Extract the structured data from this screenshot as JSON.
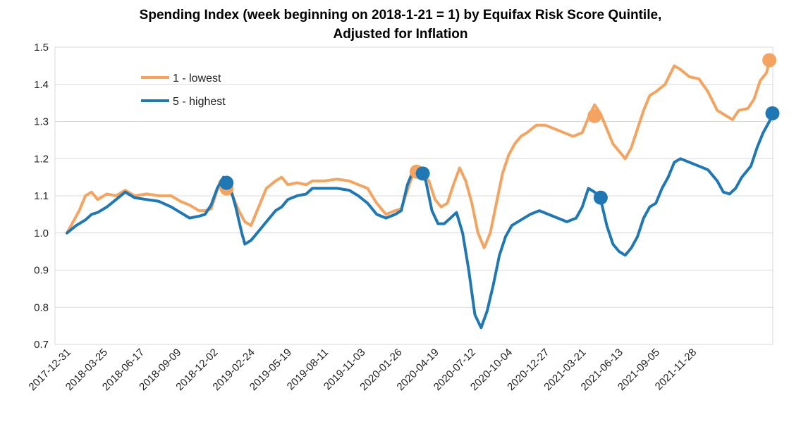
{
  "chart_data": {
    "type": "line",
    "title": "Spending Index (week beginning on 2018-1-21 = 1) by Equifax Risk Score Quintile,",
    "subtitle": "Adjusted for Inflation",
    "xlabel": "",
    "ylabel": "",
    "ylim": [
      0.7,
      1.5
    ],
    "y_ticks": [
      "0.7",
      "0.8",
      "0.9",
      "1.0",
      "1.1",
      "1.2",
      "1.3",
      "1.4",
      "1.5"
    ],
    "grid": true,
    "legend_position": "top-left",
    "x_tick_labels": [
      "2017-12-31",
      "2018-03-25",
      "2018-06-17",
      "2018-09-09",
      "2018-12-02",
      "2019-02-24",
      "2019-05-19",
      "2019-08-11",
      "2019-11-03",
      "2020-01-26",
      "2020-04-19",
      "2020-07-12",
      "2020-10-04",
      "2020-12-27",
      "2021-03-21",
      "2021-06-13",
      "2021-09-05",
      "2021-11-28"
    ],
    "series": [
      {
        "name": "1 - lowest",
        "color": "#f4a460",
        "points": [
          [
            0,
            1.0
          ],
          [
            4,
            1.06
          ],
          [
            6,
            1.1
          ],
          [
            8,
            1.11
          ],
          [
            10,
            1.09
          ],
          [
            13,
            1.105
          ],
          [
            16,
            1.1
          ],
          [
            19,
            1.115
          ],
          [
            22,
            1.1
          ],
          [
            26,
            1.105
          ],
          [
            30,
            1.1
          ],
          [
            34,
            1.1
          ],
          [
            37,
            1.085
          ],
          [
            40,
            1.075
          ],
          [
            43,
            1.06
          ],
          [
            45,
            1.06
          ],
          [
            47,
            1.065
          ],
          [
            50,
            1.14
          ],
          [
            52,
            1.12
          ],
          [
            54,
            1.1
          ],
          [
            56,
            1.06
          ],
          [
            58,
            1.03
          ],
          [
            60,
            1.02
          ],
          [
            62,
            1.06
          ],
          [
            65,
            1.12
          ],
          [
            68,
            1.14
          ],
          [
            70,
            1.15
          ],
          [
            72,
            1.13
          ],
          [
            75,
            1.135
          ],
          [
            78,
            1.13
          ],
          [
            80,
            1.14
          ],
          [
            84,
            1.14
          ],
          [
            88,
            1.145
          ],
          [
            92,
            1.14
          ],
          [
            95,
            1.13
          ],
          [
            98,
            1.12
          ],
          [
            101,
            1.08
          ],
          [
            104,
            1.05
          ],
          [
            107,
            1.06
          ],
          [
            109,
            1.065
          ],
          [
            112,
            1.14
          ],
          [
            114,
            1.18
          ],
          [
            116,
            1.16
          ],
          [
            118,
            1.14
          ],
          [
            120,
            1.09
          ],
          [
            122,
            1.07
          ],
          [
            124,
            1.08
          ],
          [
            126,
            1.13
          ],
          [
            128,
            1.175
          ],
          [
            130,
            1.14
          ],
          [
            132,
            1.08
          ],
          [
            134,
            1.0
          ],
          [
            136,
            0.96
          ],
          [
            138,
            1.0
          ],
          [
            140,
            1.08
          ],
          [
            142,
            1.16
          ],
          [
            144,
            1.21
          ],
          [
            146,
            1.24
          ],
          [
            148,
            1.26
          ],
          [
            150,
            1.27
          ],
          [
            153,
            1.29
          ],
          [
            156,
            1.29
          ],
          [
            159,
            1.28
          ],
          [
            162,
            1.27
          ],
          [
            165,
            1.26
          ],
          [
            168,
            1.27
          ],
          [
            170,
            1.31
          ],
          [
            172,
            1.345
          ],
          [
            174,
            1.32
          ],
          [
            176,
            1.28
          ],
          [
            178,
            1.24
          ],
          [
            180,
            1.22
          ],
          [
            182,
            1.2
          ],
          [
            184,
            1.23
          ],
          [
            186,
            1.28
          ],
          [
            188,
            1.33
          ],
          [
            190,
            1.37
          ],
          [
            192,
            1.38
          ],
          [
            195,
            1.4
          ],
          [
            198,
            1.45
          ],
          [
            200,
            1.44
          ],
          [
            203,
            1.42
          ],
          [
            206,
            1.415
          ],
          [
            209,
            1.38
          ],
          [
            212,
            1.33
          ],
          [
            215,
            1.315
          ],
          [
            217,
            1.305
          ],
          [
            219,
            1.33
          ],
          [
            222,
            1.335
          ],
          [
            224,
            1.36
          ],
          [
            226,
            1.41
          ],
          [
            228,
            1.43
          ],
          [
            229,
            1.46
          ]
        ],
        "markers": [
          [
            52,
            1.12
          ],
          [
            114,
            1.165
          ],
          [
            172,
            1.315
          ],
          [
            229,
            1.465
          ]
        ]
      },
      {
        "name": "5 - highest",
        "color": "#1f77b4",
        "points": [
          [
            0,
            1.0
          ],
          [
            3,
            1.02
          ],
          [
            6,
            1.035
          ],
          [
            8,
            1.05
          ],
          [
            10,
            1.055
          ],
          [
            13,
            1.07
          ],
          [
            16,
            1.09
          ],
          [
            19,
            1.11
          ],
          [
            22,
            1.095
          ],
          [
            26,
            1.09
          ],
          [
            30,
            1.085
          ],
          [
            34,
            1.07
          ],
          [
            37,
            1.055
          ],
          [
            40,
            1.04
          ],
          [
            43,
            1.045
          ],
          [
            45,
            1.05
          ],
          [
            47,
            1.075
          ],
          [
            49,
            1.12
          ],
          [
            51,
            1.15
          ],
          [
            53,
            1.13
          ],
          [
            55,
            1.07
          ],
          [
            57,
            1.0
          ],
          [
            58,
            0.97
          ],
          [
            60,
            0.98
          ],
          [
            62,
            1.0
          ],
          [
            65,
            1.03
          ],
          [
            68,
            1.06
          ],
          [
            70,
            1.07
          ],
          [
            72,
            1.09
          ],
          [
            75,
            1.1
          ],
          [
            78,
            1.105
          ],
          [
            80,
            1.12
          ],
          [
            84,
            1.12
          ],
          [
            88,
            1.12
          ],
          [
            92,
            1.115
          ],
          [
            95,
            1.1
          ],
          [
            98,
            1.08
          ],
          [
            101,
            1.05
          ],
          [
            104,
            1.04
          ],
          [
            107,
            1.05
          ],
          [
            109,
            1.06
          ],
          [
            111,
            1.13
          ],
          [
            113,
            1.17
          ],
          [
            115,
            1.17
          ],
          [
            117,
            1.14
          ],
          [
            119,
            1.06
          ],
          [
            121,
            1.025
          ],
          [
            123,
            1.025
          ],
          [
            125,
            1.04
          ],
          [
            127,
            1.055
          ],
          [
            129,
            1.0
          ],
          [
            131,
            0.9
          ],
          [
            133,
            0.78
          ],
          [
            135,
            0.745
          ],
          [
            137,
            0.79
          ],
          [
            139,
            0.86
          ],
          [
            141,
            0.94
          ],
          [
            143,
            0.99
          ],
          [
            145,
            1.02
          ],
          [
            148,
            1.035
          ],
          [
            151,
            1.05
          ],
          [
            154,
            1.06
          ],
          [
            157,
            1.05
          ],
          [
            160,
            1.04
          ],
          [
            163,
            1.03
          ],
          [
            166,
            1.04
          ],
          [
            168,
            1.07
          ],
          [
            170,
            1.12
          ],
          [
            172,
            1.11
          ],
          [
            174,
            1.09
          ],
          [
            176,
            1.02
          ],
          [
            178,
            0.97
          ],
          [
            180,
            0.95
          ],
          [
            182,
            0.94
          ],
          [
            184,
            0.96
          ],
          [
            186,
            0.99
          ],
          [
            188,
            1.04
          ],
          [
            190,
            1.07
          ],
          [
            192,
            1.08
          ],
          [
            194,
            1.12
          ],
          [
            196,
            1.15
          ],
          [
            198,
            1.19
          ],
          [
            200,
            1.2
          ],
          [
            203,
            1.19
          ],
          [
            206,
            1.18
          ],
          [
            209,
            1.17
          ],
          [
            212,
            1.14
          ],
          [
            214,
            1.11
          ],
          [
            216,
            1.105
          ],
          [
            218,
            1.12
          ],
          [
            220,
            1.15
          ],
          [
            223,
            1.18
          ],
          [
            225,
            1.23
          ],
          [
            227,
            1.27
          ],
          [
            229,
            1.3
          ],
          [
            230,
            1.32
          ]
        ],
        "markers": [
          [
            52,
            1.135
          ],
          [
            116,
            1.16
          ],
          [
            174,
            1.095
          ],
          [
            230,
            1.322
          ]
        ]
      }
    ]
  }
}
